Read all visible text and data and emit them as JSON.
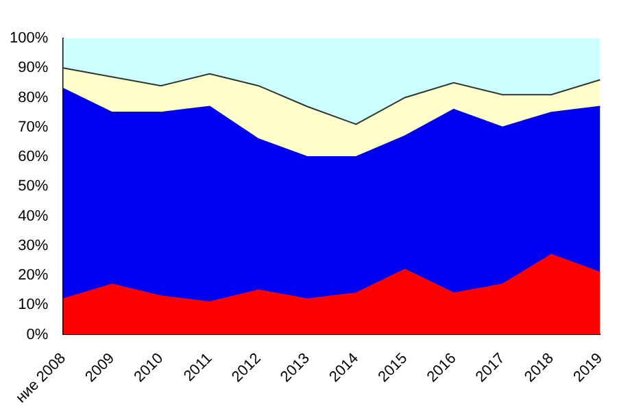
{
  "chart_data": {
    "type": "area",
    "stacked": true,
    "categories": [
      "ние 2008",
      "2009",
      "2010",
      "2011",
      "2012",
      "2013",
      "2014",
      "2015",
      "2016",
      "2017",
      "2018",
      "2019"
    ],
    "series": [
      {
        "color": "#ff0000",
        "values": [
          12,
          17,
          13,
          11,
          15,
          12,
          14,
          22,
          14,
          17,
          27,
          21
        ]
      },
      {
        "color": "#0000f0",
        "values": [
          71,
          58,
          62,
          66,
          51,
          48,
          46,
          45,
          62,
          53,
          48,
          56
        ]
      },
      {
        "color": "#ffffcc",
        "values": [
          7,
          12,
          9,
          11,
          18,
          17,
          11,
          13,
          9,
          11,
          6,
          9
        ]
      },
      {
        "color": "#ccffff",
        "values": [
          10,
          13,
          16,
          12,
          16,
          23,
          29,
          20,
          15,
          19,
          19,
          14
        ]
      }
    ],
    "ylim": [
      0,
      100
    ],
    "yticks": [
      {
        "value": 0,
        "label": "0%"
      },
      {
        "value": 10,
        "label": "10%"
      },
      {
        "value": 20,
        "label": "20%"
      },
      {
        "value": 30,
        "label": "30%"
      },
      {
        "value": 40,
        "label": "40%"
      },
      {
        "value": 50,
        "label": "50%"
      },
      {
        "value": 60,
        "label": "60%"
      },
      {
        "value": 70,
        "label": "70%"
      },
      {
        "value": 80,
        "label": "80%"
      },
      {
        "value": 90,
        "label": "90%"
      },
      {
        "value": 100,
        "label": "100%"
      }
    ],
    "grid": false,
    "legend": false
  }
}
